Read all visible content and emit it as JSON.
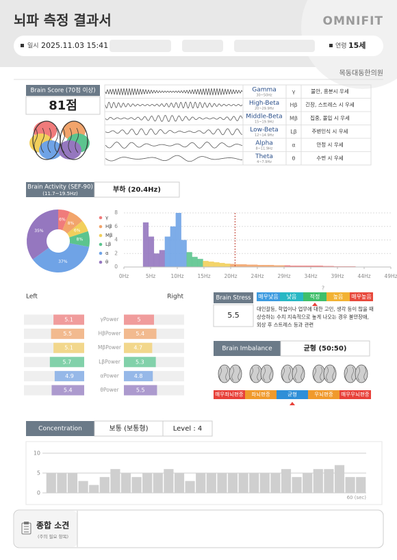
{
  "header": {
    "title": "뇌파 측정 결과서",
    "logo": "OMNIFIT",
    "date_label": "일시",
    "date": "2025.11.03 15:41",
    "age_label": "연령",
    "age": "15세",
    "clinic": "목동대동한의원"
  },
  "brain_score": {
    "label": "Brain Score (70점 이상)",
    "value": "81점"
  },
  "waves": [
    {
      "name": "Gamma",
      "range": "30~50Hz",
      "symbol": "γ",
      "desc": "불안, 흥분시 우세"
    },
    {
      "name": "High-Beta",
      "range": "20~29.9Hz",
      "symbol": "Hβ",
      "desc": "긴장, 스트레스 시 우세"
    },
    {
      "name": "Middle-Beta",
      "range": "15~19.9Hz",
      "symbol": "Mβ",
      "desc": "집중, 몰입 시 우세"
    },
    {
      "name": "Low-Beta",
      "range": "12~14.9Hz",
      "symbol": "Lβ",
      "desc": "주변인식 시 우세"
    },
    {
      "name": "Alpha",
      "range": "8~11.9Hz",
      "symbol": "α",
      "desc": "안정 시 우세"
    },
    {
      "name": "Theta",
      "range": "4~7.9Hz",
      "symbol": "θ",
      "desc": "수면 시 우세"
    }
  ],
  "brain_activity": {
    "label": "Brain Activity (SEF-90)",
    "range": "(11.7~19.5Hz)",
    "value": "부하 (20.4Hz)"
  },
  "brain_stress": {
    "label": "Brain Stress",
    "value": "5.5",
    "help": "?",
    "levels": [
      {
        "label": "매우낮음",
        "color": "#3d9be0"
      },
      {
        "label": "낮음",
        "color": "#27b8c4"
      },
      {
        "label": "적정",
        "color": "#3fbf6a"
      },
      {
        "label": "높음",
        "color": "#f2b233"
      },
      {
        "label": "매우높음",
        "color": "#e8493c"
      }
    ],
    "description": [
      "대인갈등, 학업이나 업무에 대한 고민, 생각 등이 많을 때",
      "상승하는 수치 지속적으로 높게 나오는 경우 불안장애,",
      "외상 후 스트레스 등과 관련"
    ]
  },
  "brain_imbalance": {
    "label": "Brain Imbalance",
    "value": "균형 (50:50)",
    "levels": [
      {
        "label": "매우좌뇌편중",
        "color": "#e8413a"
      },
      {
        "label": "좌뇌편중",
        "color": "#f09a2c"
      },
      {
        "label": "균형",
        "color": "#2e8fd8"
      },
      {
        "label": "우뇌편중",
        "color": "#f09a2c"
      },
      {
        "label": "매우우뇌편중",
        "color": "#e8413a"
      }
    ]
  },
  "concentration": {
    "label": "Concentration",
    "value": "보통 (보통형)",
    "level": "Level : 4"
  },
  "summary": {
    "title": "종합 소견",
    "subtitle": "(주의 필요 항목)"
  },
  "chart_data": [
    {
      "type": "pie",
      "donut": true,
      "categories": [
        "γ",
        "Hβ",
        "Mβ",
        "Lβ",
        "α",
        "θ"
      ],
      "colors": [
        "#f07b7b",
        "#f2a46b",
        "#f2cf5b",
        "#5cc48e",
        "#6fa3e6",
        "#9577bf"
      ],
      "values": [
        6,
        8,
        6,
        8,
        37,
        35
      ],
      "value_labels": [
        "6%",
        "8%",
        "6%",
        "8%",
        "37%",
        "35%"
      ]
    },
    {
      "type": "area",
      "xlim": [
        0,
        49
      ],
      "ylim": [
        0,
        8
      ],
      "yticks": [
        0,
        2,
        4,
        6,
        8
      ],
      "grid": true,
      "xticks": [
        {
          "value": 0,
          "label": "0Hz"
        },
        {
          "value": 4.9,
          "label": "5Hz"
        },
        {
          "value": 9.8,
          "label": "10Hz"
        },
        {
          "value": 14.7,
          "label": "15Hz"
        },
        {
          "value": 19.6,
          "label": "20Hz"
        },
        {
          "value": 24.5,
          "label": "24Hz"
        },
        {
          "value": 29.4,
          "label": "29Hz"
        },
        {
          "value": 34.3,
          "label": "34Hz"
        },
        {
          "value": 39.2,
          "label": "39Hz"
        },
        {
          "value": 44.1,
          "label": "44Hz"
        },
        {
          "value": 49,
          "label": "49Hz"
        }
      ],
      "reference_line": 20.4,
      "reference_color": "#c0392b",
      "series": [
        {
          "color": "#9577bf",
          "x": [
            4,
            5,
            6,
            7
          ],
          "values": [
            6.6,
            4.5,
            2,
            2.5
          ]
        },
        {
          "color": "#6fa3e6",
          "x": [
            8,
            9,
            10,
            11
          ],
          "values": [
            4.5,
            6,
            8,
            4
          ]
        },
        {
          "color": "#5cc48e",
          "x": [
            12,
            13,
            14
          ],
          "values": [
            2.2,
            1.5,
            1.2
          ]
        },
        {
          "color": "#f2cf5b",
          "x": [
            15,
            16,
            17,
            18,
            19
          ],
          "values": [
            0.9,
            0.8,
            0.7,
            0.6,
            0.5
          ]
        },
        {
          "color": "#f2a46b",
          "x": [
            20,
            21,
            22,
            23,
            24,
            25,
            26,
            27,
            28,
            29
          ],
          "values": [
            0.45,
            0.4,
            0.4,
            0.35,
            0.35,
            0.3,
            0.3,
            0.3,
            0.25,
            0.25
          ]
        },
        {
          "color": "#f07b7b",
          "x": [
            30,
            31,
            32,
            33,
            34,
            35,
            36,
            37,
            38,
            39,
            40,
            41,
            42
          ],
          "values": [
            0.25,
            0.2,
            0.2,
            0.2,
            0.2,
            0.2,
            0.2,
            0.15,
            0.15,
            0.1,
            0.1,
            0.1,
            0.1
          ]
        }
      ]
    },
    {
      "type": "diverging-bar",
      "xlim": [
        0,
        10
      ],
      "categories": [
        "γPower",
        "HβPower",
        "MβPower",
        "LβPower",
        "αPower",
        "θPower"
      ],
      "colors": [
        "#f08d8d",
        "#f2b07e",
        "#f2d27a",
        "#6fcb9e",
        "#86aee6",
        "#a08bc8"
      ],
      "series": [
        {
          "name": "Left",
          "values": [
            5.1,
            5.5,
            5.1,
            5.7,
            4.9,
            5.4
          ]
        },
        {
          "name": "Right",
          "values": [
            5,
            5.4,
            4.7,
            5.3,
            4.8,
            5.5
          ]
        }
      ]
    },
    {
      "type": "bar",
      "ylim": [
        0,
        10
      ],
      "yticks": [
        0,
        5,
        10
      ],
      "color": "#cfcfcf",
      "x_label": "60 (sec)",
      "values": [
        5,
        5,
        5,
        3,
        2,
        4,
        6,
        5,
        4,
        5,
        5,
        6,
        5,
        3,
        5,
        5,
        5,
        5,
        5,
        5,
        5,
        5,
        6,
        4,
        5,
        6,
        6,
        7,
        4,
        4
      ]
    }
  ]
}
